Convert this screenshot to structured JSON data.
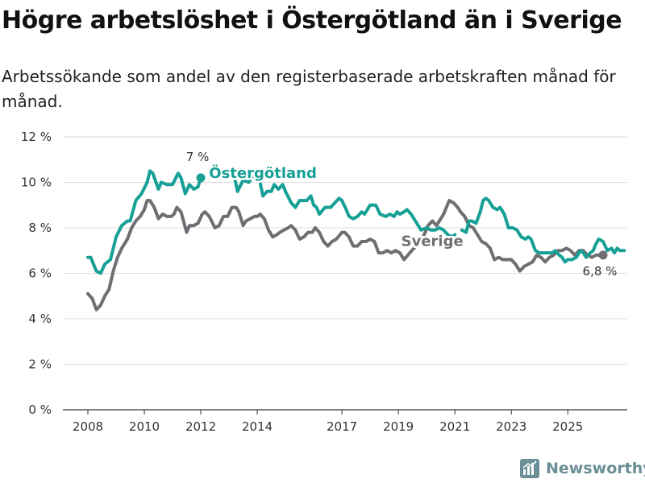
{
  "header": {
    "title": "Högre arbetslöshet i Östergötland än i Sverige",
    "subtitle": "Arbetssökande som andel av den registerbaserade arbetskraften månad för månad."
  },
  "branding": {
    "name": "Newsworthy",
    "logo_icon": "bar-chart-icon",
    "color": "#6a8f96"
  },
  "chart_data": {
    "type": "line",
    "title": "Högre arbetslöshet i Östergötland än i Sverige",
    "xlabel": "",
    "ylabel": "",
    "xlim": [
      2008.0,
      2026.25
    ],
    "ylim": [
      0,
      12
    ],
    "y_ticks": [
      "0 %",
      "2 %",
      "4 %",
      "6 %",
      "8 %",
      "10 %",
      "12 %"
    ],
    "y_tick_values": [
      0,
      2,
      4,
      6,
      8,
      10,
      12
    ],
    "x_ticks": [
      "2008",
      "2010",
      "2012",
      "2014",
      "2017",
      "2019",
      "2021",
      "2023",
      "2025"
    ],
    "x_tick_values": [
      2008,
      2010,
      2012,
      2014,
      2017,
      2019,
      2021,
      2023,
      2025
    ],
    "grid": "horizontal",
    "series": [
      {
        "name": "Östergötland",
        "color": "#17a095",
        "end_label": "7 %",
        "points": [
          [
            2008.0,
            6.7
          ],
          [
            2008.1,
            6.7
          ],
          [
            2008.3,
            6.1
          ],
          [
            2008.45,
            6.0
          ],
          [
            2008.6,
            6.4
          ],
          [
            2008.8,
            6.6
          ],
          [
            2009.0,
            7.6
          ],
          [
            2009.2,
            8.1
          ],
          [
            2009.4,
            8.3
          ],
          [
            2009.5,
            8.3
          ],
          [
            2009.7,
            9.2
          ],
          [
            2009.9,
            9.5
          ],
          [
            2010.1,
            10.0
          ],
          [
            2010.2,
            10.5
          ],
          [
            2010.3,
            10.4
          ],
          [
            2010.5,
            9.7
          ],
          [
            2010.6,
            10.0
          ],
          [
            2010.8,
            9.9
          ],
          [
            2011.0,
            9.9
          ],
          [
            2011.2,
            10.4
          ],
          [
            2011.3,
            10.2
          ],
          [
            2011.45,
            9.5
          ],
          [
            2011.6,
            9.9
          ],
          [
            2011.75,
            9.7
          ],
          [
            2011.9,
            9.8
          ],
          [
            2012.0,
            10.2
          ]
        ]
      },
      {
        "name": "Östergötland",
        "color": "#17a095",
        "points": [
          [
            2013.0,
            10.5
          ],
          [
            2013.1,
            10.4
          ],
          [
            2013.2,
            10.2
          ],
          [
            2013.3,
            9.6
          ],
          [
            2013.5,
            10.1
          ],
          [
            2013.7,
            10.0
          ],
          [
            2013.85,
            10.3
          ],
          [
            2014.0,
            10.3
          ],
          [
            2014.1,
            10.0
          ],
          [
            2014.2,
            9.4
          ],
          [
            2014.35,
            9.6
          ],
          [
            2014.5,
            9.6
          ],
          [
            2014.6,
            9.9
          ],
          [
            2014.75,
            9.7
          ],
          [
            2014.9,
            9.9
          ],
          [
            2015.0,
            9.6
          ],
          [
            2015.2,
            9.1
          ],
          [
            2015.35,
            8.9
          ],
          [
            2015.5,
            9.2
          ],
          [
            2015.75,
            9.2
          ],
          [
            2015.9,
            9.4
          ],
          [
            2016.0,
            9.0
          ],
          [
            2016.1,
            8.9
          ],
          [
            2016.2,
            8.6
          ],
          [
            2016.4,
            8.9
          ],
          [
            2016.6,
            8.9
          ],
          [
            2016.75,
            9.1
          ],
          [
            2016.9,
            9.3
          ],
          [
            2017.0,
            9.2
          ],
          [
            2017.15,
            8.8
          ],
          [
            2017.25,
            8.5
          ],
          [
            2017.4,
            8.4
          ],
          [
            2017.55,
            8.5
          ],
          [
            2017.7,
            8.7
          ],
          [
            2017.8,
            8.6
          ],
          [
            2018.0,
            9.0
          ],
          [
            2018.2,
            9.0
          ],
          [
            2018.35,
            8.6
          ],
          [
            2018.55,
            8.5
          ],
          [
            2018.7,
            8.6
          ],
          [
            2018.85,
            8.5
          ],
          [
            2018.95,
            8.7
          ],
          [
            2019.05,
            8.6
          ],
          [
            2019.2,
            8.7
          ],
          [
            2019.3,
            8.8
          ],
          [
            2019.45,
            8.6
          ],
          [
            2019.6,
            8.3
          ],
          [
            2019.8,
            7.9
          ],
          [
            2020.0,
            8.0
          ],
          [
            2020.15,
            7.9
          ],
          [
            2020.3,
            7.9
          ],
          [
            2020.45,
            8.0
          ],
          [
            2020.6,
            7.9
          ],
          [
            2020.75,
            7.7
          ],
          [
            2020.9,
            7.6
          ],
          [
            2021.0,
            7.7
          ]
        ]
      },
      {
        "name": "Östergötland",
        "color": "#17a095",
        "points": [
          [
            2021.25,
            7.9
          ],
          [
            2021.4,
            7.8
          ],
          [
            2021.5,
            8.3
          ],
          [
            2021.6,
            8.3
          ],
          [
            2021.75,
            8.2
          ],
          [
            2021.9,
            8.7
          ],
          [
            2022.0,
            9.2
          ],
          [
            2022.1,
            9.3
          ],
          [
            2022.2,
            9.2
          ],
          [
            2022.35,
            8.9
          ],
          [
            2022.5,
            8.8
          ],
          [
            2022.6,
            8.9
          ],
          [
            2022.75,
            8.6
          ],
          [
            2022.9,
            8.0
          ],
          [
            2023.05,
            8.0
          ],
          [
            2023.2,
            7.9
          ],
          [
            2023.35,
            7.6
          ],
          [
            2023.5,
            7.5
          ],
          [
            2023.6,
            7.6
          ],
          [
            2023.7,
            7.5
          ],
          [
            2023.85,
            7.0
          ],
          [
            2024.0,
            6.9
          ],
          [
            2024.15,
            6.9
          ],
          [
            2024.3,
            6.9
          ],
          [
            2024.45,
            6.9
          ],
          [
            2024.55,
            7.0
          ],
          [
            2024.7,
            6.8
          ],
          [
            2024.8,
            6.7
          ],
          [
            2024.9,
            6.5
          ],
          [
            2025.0,
            6.6
          ],
          [
            2025.15,
            6.6
          ],
          [
            2025.3,
            6.7
          ],
          [
            2025.45,
            7.0
          ],
          [
            2025.55,
            6.9
          ],
          [
            2025.65,
            6.7
          ],
          [
            2025.8,
            6.9
          ],
          [
            2025.9,
            7.0
          ],
          [
            2026.0,
            7.3
          ],
          [
            2026.1,
            7.5
          ],
          [
            2026.25,
            7.4
          ],
          [
            2026.4,
            7.0
          ],
          [
            2026.55,
            7.1
          ],
          [
            2026.65,
            6.9
          ],
          [
            2026.75,
            7.1
          ],
          [
            2026.85,
            7.0
          ],
          [
            2027.0,
            7.0
          ]
        ]
      },
      {
        "name": "Sverige",
        "color": "#6e6e73",
        "end_label": "6,8 %",
        "points": [
          [
            2008.0,
            5.1
          ],
          [
            2008.15,
            4.9
          ],
          [
            2008.3,
            4.4
          ],
          [
            2008.45,
            4.6
          ],
          [
            2008.6,
            5.0
          ],
          [
            2008.75,
            5.3
          ],
          [
            2008.9,
            6.1
          ],
          [
            2009.05,
            6.7
          ],
          [
            2009.2,
            7.1
          ],
          [
            2009.4,
            7.5
          ],
          [
            2009.55,
            8.0
          ],
          [
            2009.7,
            8.3
          ],
          [
            2009.85,
            8.5
          ],
          [
            2010.0,
            8.8
          ],
          [
            2010.1,
            9.2
          ],
          [
            2010.2,
            9.2
          ],
          [
            2010.35,
            8.9
          ],
          [
            2010.5,
            8.4
          ],
          [
            2010.65,
            8.6
          ],
          [
            2010.8,
            8.5
          ],
          [
            2010.95,
            8.5
          ],
          [
            2011.05,
            8.6
          ],
          [
            2011.15,
            8.9
          ],
          [
            2011.3,
            8.7
          ],
          [
            2011.5,
            7.8
          ],
          [
            2011.6,
            8.1
          ],
          [
            2011.75,
            8.1
          ],
          [
            2011.9,
            8.2
          ],
          [
            2012.05,
            8.6
          ],
          [
            2012.15,
            8.7
          ],
          [
            2012.3,
            8.5
          ],
          [
            2012.5,
            8.0
          ],
          [
            2012.65,
            8.1
          ],
          [
            2012.8,
            8.5
          ],
          [
            2012.95,
            8.5
          ],
          [
            2013.1,
            8.9
          ],
          [
            2013.25,
            8.9
          ],
          [
            2013.35,
            8.7
          ],
          [
            2013.5,
            8.1
          ],
          [
            2013.6,
            8.3
          ],
          [
            2013.75,
            8.4
          ],
          [
            2013.9,
            8.5
          ],
          [
            2014.0,
            8.5
          ],
          [
            2014.1,
            8.6
          ],
          [
            2014.25,
            8.4
          ],
          [
            2014.4,
            7.9
          ],
          [
            2014.55,
            7.6
          ],
          [
            2014.7,
            7.7
          ],
          [
            2014.8,
            7.8
          ],
          [
            2014.95,
            7.9
          ],
          [
            2015.1,
            8.0
          ],
          [
            2015.2,
            8.1
          ],
          [
            2015.35,
            7.9
          ],
          [
            2015.5,
            7.5
          ],
          [
            2015.65,
            7.6
          ],
          [
            2015.8,
            7.8
          ],
          [
            2015.95,
            7.8
          ],
          [
            2016.05,
            8.0
          ],
          [
            2016.2,
            7.8
          ],
          [
            2016.35,
            7.4
          ],
          [
            2016.5,
            7.2
          ],
          [
            2016.65,
            7.4
          ],
          [
            2016.8,
            7.5
          ],
          [
            2017.0,
            7.8
          ],
          [
            2017.1,
            7.8
          ],
          [
            2017.25,
            7.6
          ],
          [
            2017.4,
            7.2
          ],
          [
            2017.55,
            7.2
          ],
          [
            2017.7,
            7.4
          ],
          [
            2017.85,
            7.4
          ],
          [
            2018.0,
            7.5
          ],
          [
            2018.15,
            7.4
          ],
          [
            2018.3,
            6.9
          ],
          [
            2018.45,
            6.9
          ],
          [
            2018.6,
            7.0
          ],
          [
            2018.75,
            6.9
          ],
          [
            2018.9,
            7.0
          ],
          [
            2019.05,
            6.9
          ],
          [
            2019.2,
            6.6
          ],
          [
            2019.4,
            6.9
          ],
          [
            2019.55,
            7.1
          ],
          [
            2019.7,
            7.3
          ],
          [
            2019.8,
            7.4
          ],
          [
            2019.95,
            7.8
          ],
          [
            2020.05,
            8.1
          ],
          [
            2020.2,
            8.3
          ],
          [
            2020.35,
            8.1
          ],
          [
            2020.5,
            8.4
          ],
          [
            2020.6,
            8.6
          ],
          [
            2020.8,
            9.2
          ],
          [
            2020.95,
            9.1
          ],
          [
            2021.1,
            8.9
          ],
          [
            2021.2,
            8.7
          ],
          [
            2021.35,
            8.5
          ],
          [
            2021.5,
            8.1
          ],
          [
            2021.65,
            8.0
          ],
          [
            2021.8,
            7.7
          ],
          [
            2021.95,
            7.4
          ],
          [
            2022.1,
            7.3
          ],
          [
            2022.25,
            7.1
          ],
          [
            2022.4,
            6.6
          ],
          [
            2022.55,
            6.7
          ],
          [
            2022.7,
            6.6
          ],
          [
            2022.85,
            6.6
          ],
          [
            2023.0,
            6.6
          ],
          [
            2023.15,
            6.4
          ],
          [
            2023.3,
            6.1
          ],
          [
            2023.45,
            6.3
          ],
          [
            2023.6,
            6.4
          ],
          [
            2023.75,
            6.5
          ],
          [
            2023.9,
            6.8
          ],
          [
            2024.05,
            6.7
          ],
          [
            2024.2,
            6.5
          ],
          [
            2024.35,
            6.7
          ],
          [
            2024.5,
            6.8
          ],
          [
            2024.65,
            7.0
          ],
          [
            2024.8,
            7.0
          ],
          [
            2024.95,
            7.1
          ],
          [
            2025.1,
            7.0
          ],
          [
            2025.25,
            6.8
          ],
          [
            2025.4,
            7.0
          ],
          [
            2025.55,
            7.0
          ],
          [
            2025.7,
            6.8
          ],
          [
            2025.85,
            6.7
          ],
          [
            2026.0,
            6.8
          ],
          [
            2026.25,
            6.8
          ]
        ]
      }
    ],
    "annotations": [
      {
        "text": "Östergötland",
        "series": "Östergötland",
        "x": 2014.2,
        "y": 10.2
      },
      {
        "text": "Sverige",
        "series": "Sverige",
        "x": 2020.2,
        "y": 7.2
      }
    ]
  }
}
